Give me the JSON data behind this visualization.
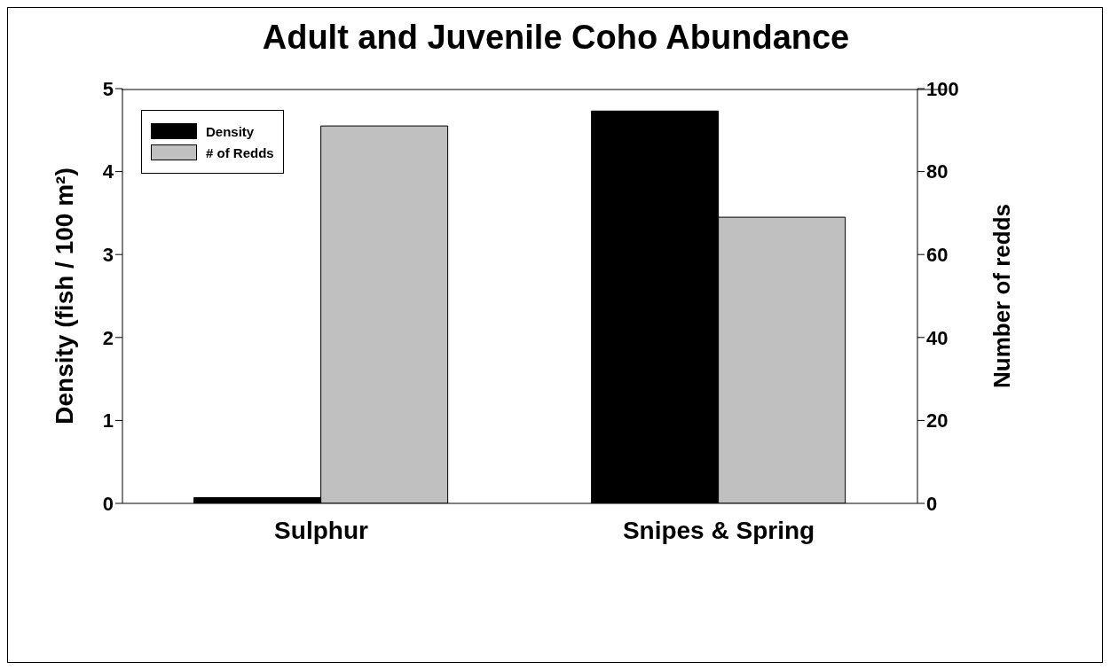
{
  "chart_data": {
    "type": "bar",
    "title": "Adult and Juvenile Coho Abundance",
    "ylabel": "Density (fish / 100 m²)",
    "y2label": "Number of redds",
    "categories": [
      "Sulphur",
      "Snipes & Spring"
    ],
    "series": [
      {
        "name": "Density",
        "color": "#000000",
        "values": [
          0.07,
          4.73
        ]
      },
      {
        "name": "# of Redds",
        "color": "#c0c0c0",
        "values": [
          91,
          69
        ],
        "axis": "y2"
      }
    ],
    "ylim": [
      0,
      5
    ],
    "yticks": [
      0,
      1,
      2,
      3,
      4,
      5
    ],
    "y2lim": [
      0,
      100
    ],
    "y2ticks": [
      0,
      20,
      40,
      60,
      80,
      100
    ],
    "legend": "top left",
    "grid": false
  }
}
